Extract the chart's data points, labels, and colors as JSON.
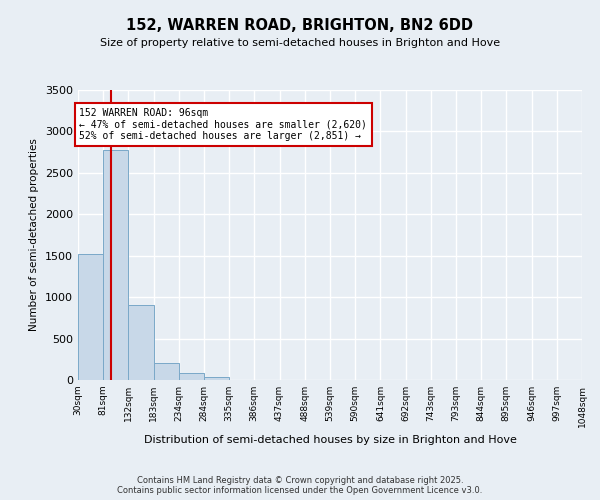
{
  "title": "152, WARREN ROAD, BRIGHTON, BN2 6DD",
  "subtitle": "Size of property relative to semi-detached houses in Brighton and Hove",
  "xlabel": "Distribution of semi-detached houses by size in Brighton and Hove",
  "ylabel": "Number of semi-detached properties",
  "property_label": "152 WARREN ROAD: 96sqm",
  "pct_smaller": "47% of semi-detached houses are smaller (2,620)",
  "pct_larger": "52% of semi-detached houses are larger (2,851)",
  "property_size": 96,
  "bin_edges": [
    30,
    81,
    132,
    183,
    234,
    284,
    335,
    386,
    437,
    488,
    539,
    590,
    641,
    692,
    743,
    793,
    844,
    895,
    946,
    997,
    1048
  ],
  "bin_labels": [
    "30sqm",
    "81sqm",
    "132sqm",
    "183sqm",
    "234sqm",
    "284sqm",
    "335sqm",
    "386sqm",
    "437sqm",
    "488sqm",
    "539sqm",
    "590sqm",
    "641sqm",
    "692sqm",
    "743sqm",
    "793sqm",
    "844sqm",
    "895sqm",
    "946sqm",
    "997sqm",
    "1048sqm"
  ],
  "counts": [
    1520,
    2780,
    900,
    200,
    85,
    35,
    0,
    0,
    0,
    0,
    0,
    0,
    0,
    0,
    0,
    0,
    0,
    0,
    0,
    0
  ],
  "bar_color": "#c8d8e8",
  "bar_edge_color": "#7aa8c8",
  "vline_color": "#cc0000",
  "vline_x": 96,
  "box_color": "#cc0000",
  "background_color": "#e8eef4",
  "grid_color": "#ffffff",
  "ylim": [
    0,
    3500
  ],
  "yticks": [
    0,
    500,
    1000,
    1500,
    2000,
    2500,
    3000,
    3500
  ],
  "footer1": "Contains HM Land Registry data © Crown copyright and database right 2025.",
  "footer2": "Contains public sector information licensed under the Open Government Licence v3.0."
}
